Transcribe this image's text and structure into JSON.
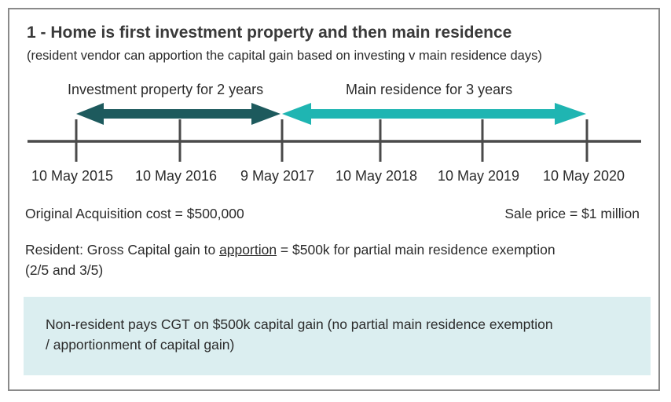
{
  "title": "1 - Home is first investment property and then main residence",
  "subtitle": "(resident vendor can apportion the capital gain based on investing v main residence days)",
  "periods": {
    "investment": "Investment property for 2 years",
    "residence": "Main residence for 3 years"
  },
  "timeline_dates": [
    "10 May 2015",
    "10 May 2016",
    "9 May 2017",
    "10 May 2018",
    "10 May 2019",
    "10 May 2020"
  ],
  "acquisition": "Original Acquisition cost = $500,000",
  "sale": "Sale price = $1 million",
  "resident_note": {
    "prefix": "Resident:  Gross Capital gain to ",
    "underlined": "apportion",
    "suffix": " = $500k for partial main residence exemption",
    "line2": "(2/5 and 3/5)"
  },
  "nonresident_note": {
    "line1": "Non-resident pays CGT on $500k capital gain (no partial main residence exemption",
    "line2": "/ apportionment of capital gain)"
  },
  "colors": {
    "investment_arrow": "#1d5a5d",
    "residence_arrow": "#1fb5b2",
    "timeline": "#4a4a4a",
    "note_bg": "#dbeef0"
  }
}
